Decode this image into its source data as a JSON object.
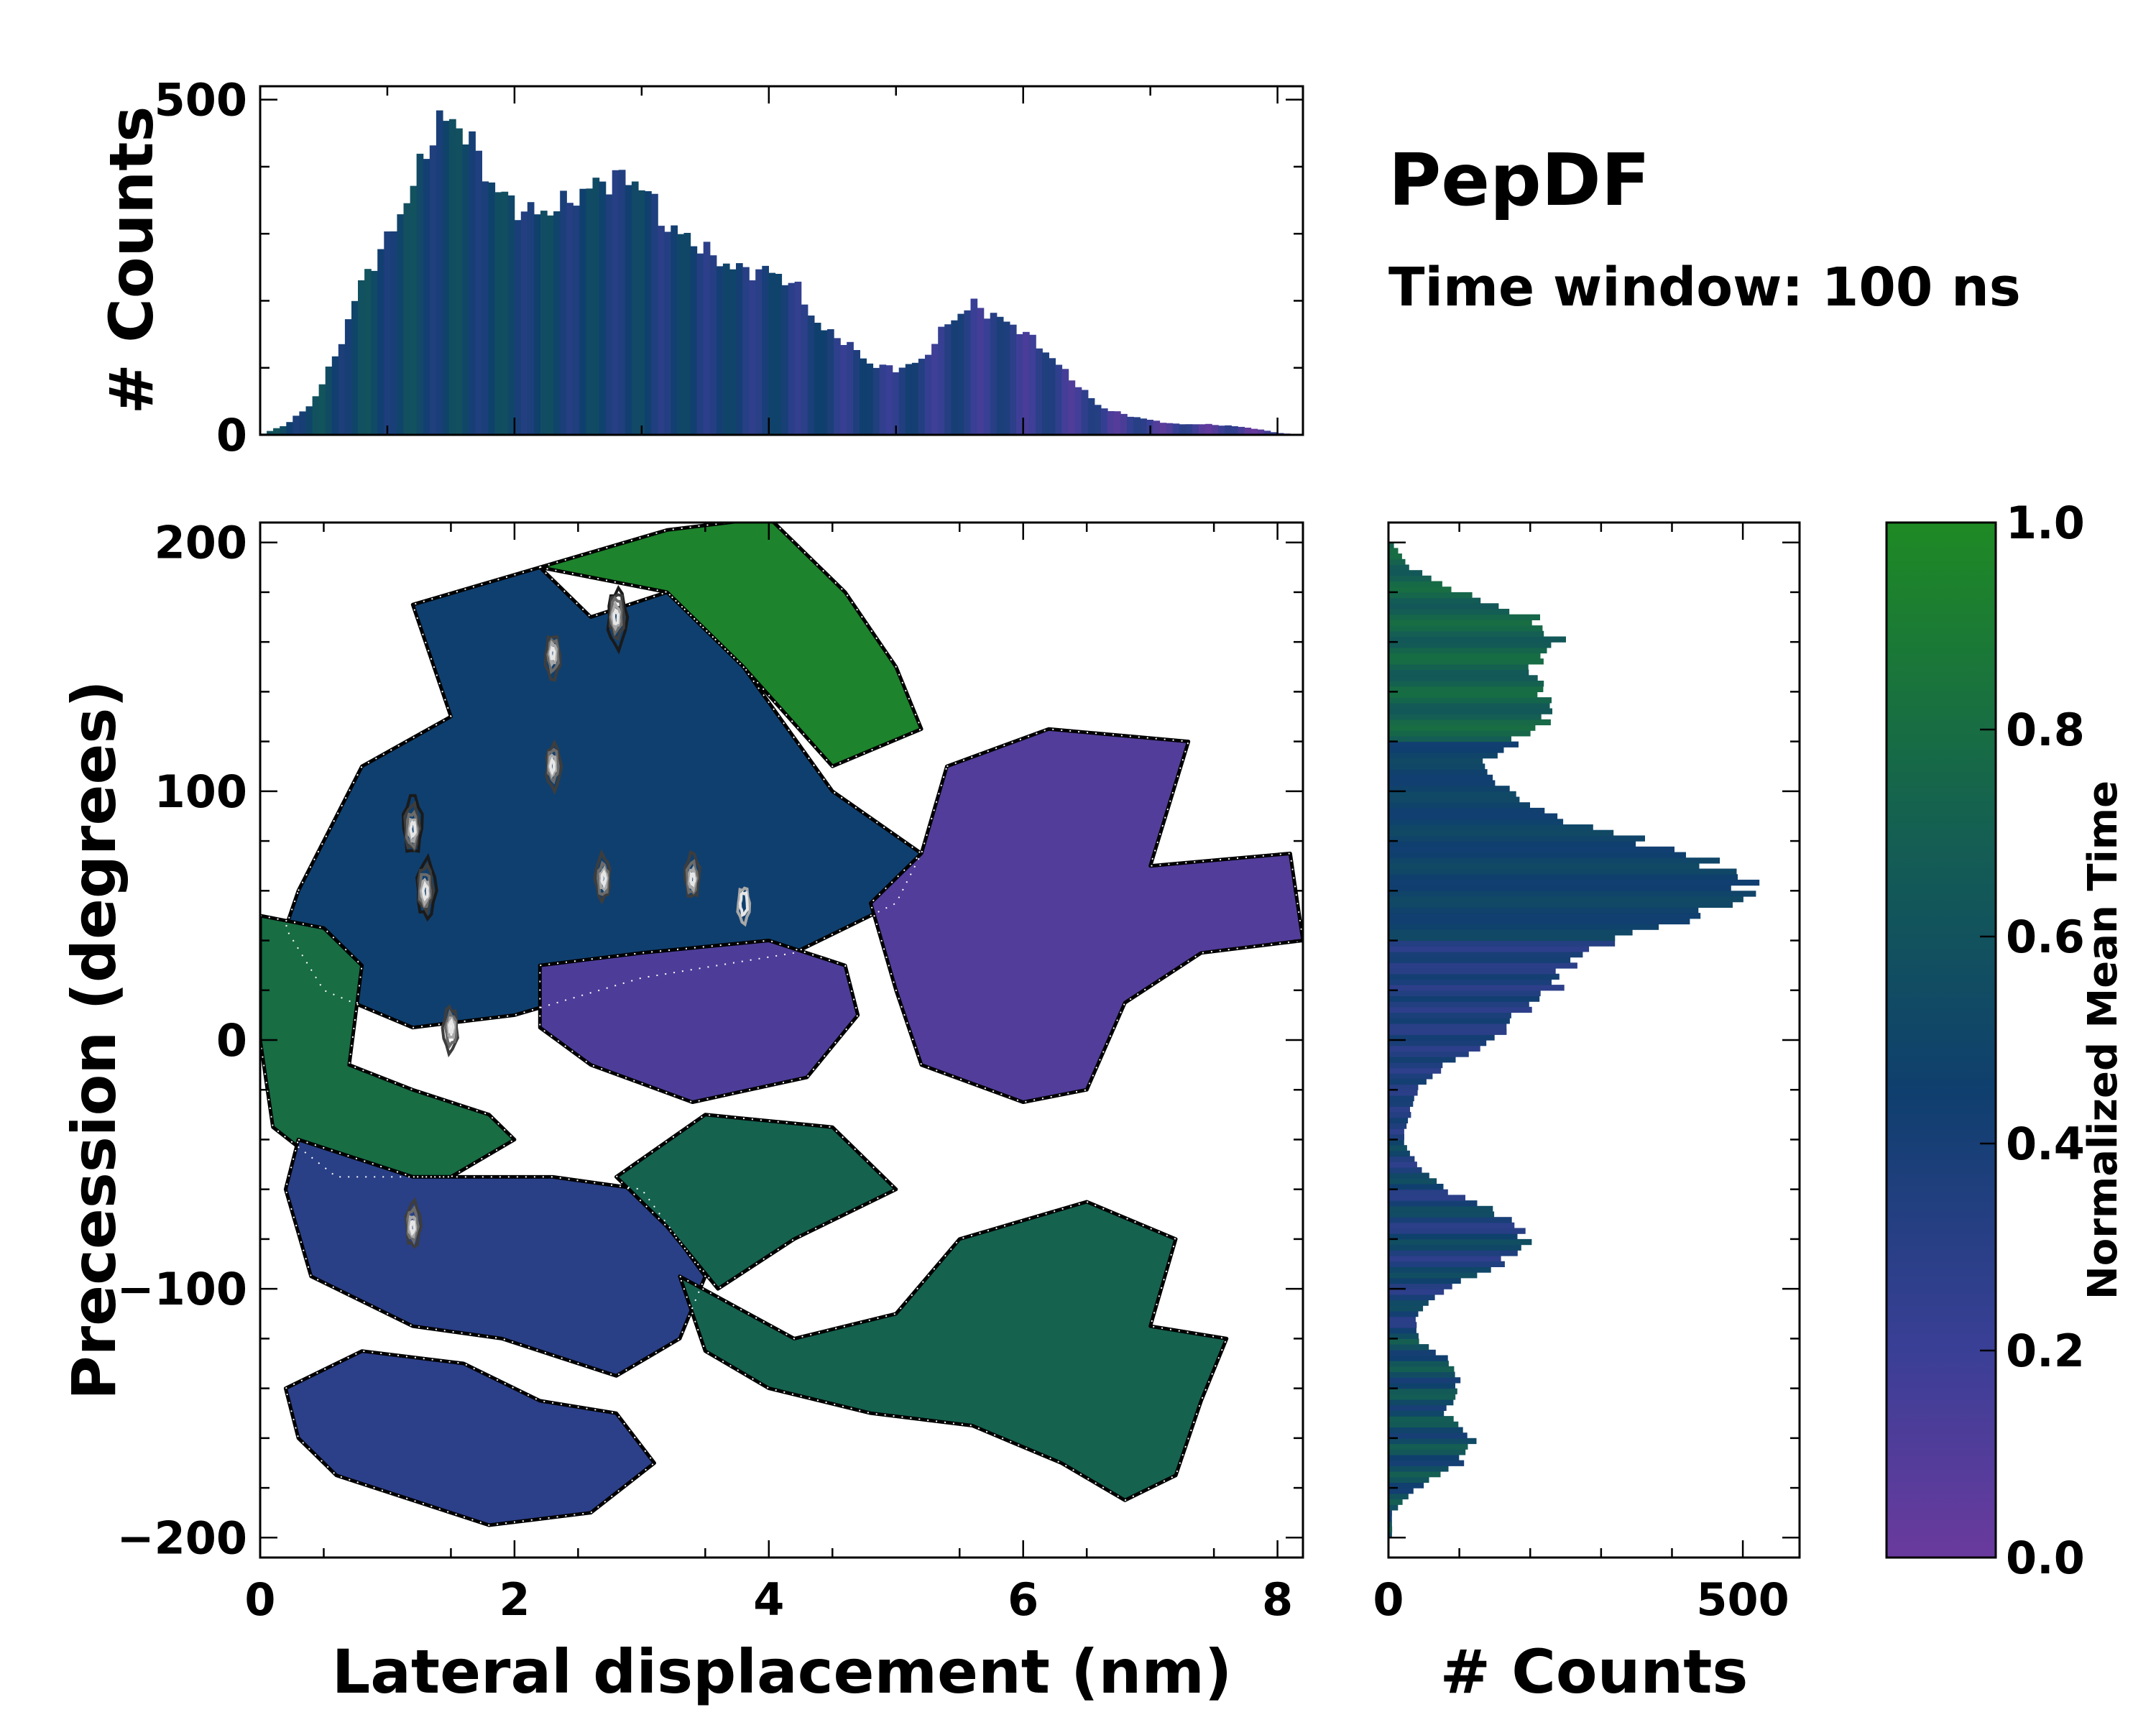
{
  "chart_data": [
    {
      "id": "main",
      "type": "heatmap",
      "title": "PepDF",
      "subtitle": "Time window: 100 ns",
      "xlabel": "Lateral displacement (nm)",
      "ylabel": "Precession (degrees)",
      "xlim": [
        0,
        8.2
      ],
      "ylim": [
        -208,
        208
      ],
      "xticks": [
        0,
        2,
        4,
        6,
        8
      ],
      "xtick_labels": [
        "0",
        "2",
        "4",
        "6",
        "8"
      ],
      "yticks": [
        -200,
        -100,
        0,
        100,
        200
      ],
      "ytick_labels": [
        "−200",
        "−100",
        "0",
        "100",
        "200"
      ],
      "regions": [
        {
          "name": "upper-blue",
          "color_value": 0.45,
          "polygon": [
            [
              0.3,
              60
            ],
            [
              0.8,
              110
            ],
            [
              1.5,
              130
            ],
            [
              1.2,
              175
            ],
            [
              2.2,
              190
            ],
            [
              2.6,
              170
            ],
            [
              3.2,
              180
            ],
            [
              3.8,
              150
            ],
            [
              4.5,
              100
            ],
            [
              5.2,
              75
            ],
            [
              5.0,
              55
            ],
            [
              4.2,
              35
            ],
            [
              3.0,
              25
            ],
            [
              2.0,
              10
            ],
            [
              1.2,
              5
            ],
            [
              0.5,
              20
            ],
            [
              0.2,
              45
            ]
          ]
        },
        {
          "name": "upper-green",
          "color_value": 0.95,
          "polygon": [
            [
              2.2,
              190
            ],
            [
              3.2,
              205
            ],
            [
              4.0,
              210
            ],
            [
              4.6,
              180
            ],
            [
              5.0,
              150
            ],
            [
              5.2,
              125
            ],
            [
              4.5,
              110
            ],
            [
              3.8,
              150
            ],
            [
              3.2,
              180
            ]
          ]
        },
        {
          "name": "upper-right-purple",
          "color_value": 0.1,
          "polygon": [
            [
              5.4,
              110
            ],
            [
              6.2,
              125
            ],
            [
              7.3,
              120
            ],
            [
              7.0,
              70
            ],
            [
              8.1,
              75
            ],
            [
              8.2,
              40
            ],
            [
              7.4,
              35
            ],
            [
              6.8,
              15
            ],
            [
              6.5,
              -20
            ],
            [
              6.0,
              -25
            ],
            [
              5.2,
              -10
            ],
            [
              5.0,
              20
            ],
            [
              4.8,
              55
            ],
            [
              5.2,
              75
            ]
          ]
        },
        {
          "name": "middle-purple",
          "color_value": 0.12,
          "polygon": [
            [
              2.2,
              30
            ],
            [
              3.0,
              35
            ],
            [
              4.0,
              40
            ],
            [
              4.6,
              30
            ],
            [
              4.7,
              10
            ],
            [
              4.3,
              -15
            ],
            [
              3.4,
              -25
            ],
            [
              2.6,
              -10
            ],
            [
              2.2,
              5
            ]
          ]
        },
        {
          "name": "left-green",
          "color_value": 0.8,
          "polygon": [
            [
              0.0,
              50
            ],
            [
              0.5,
              45
            ],
            [
              0.8,
              30
            ],
            [
              0.7,
              -10
            ],
            [
              1.2,
              -20
            ],
            [
              1.8,
              -30
            ],
            [
              2.0,
              -40
            ],
            [
              1.5,
              -55
            ],
            [
              0.6,
              -55
            ],
            [
              0.1,
              -35
            ],
            [
              0.0,
              0
            ]
          ]
        },
        {
          "name": "lower-left-blue",
          "color_value": 0.3,
          "polygon": [
            [
              0.3,
              -40
            ],
            [
              1.2,
              -55
            ],
            [
              2.3,
              -55
            ],
            [
              3.0,
              -60
            ],
            [
              3.5,
              -95
            ],
            [
              3.3,
              -120
            ],
            [
              2.8,
              -135
            ],
            [
              1.9,
              -120
            ],
            [
              1.2,
              -115
            ],
            [
              0.4,
              -95
            ],
            [
              0.2,
              -60
            ]
          ]
        },
        {
          "name": "lower-middle-green",
          "color_value": 0.72,
          "polygon": [
            [
              2.8,
              -55
            ],
            [
              3.5,
              -30
            ],
            [
              4.5,
              -35
            ],
            [
              5.0,
              -60
            ],
            [
              4.2,
              -80
            ],
            [
              3.6,
              -100
            ],
            [
              3.2,
              -75
            ]
          ]
        },
        {
          "name": "lower-right-green",
          "color_value": 0.72,
          "polygon": [
            [
              3.3,
              -95
            ],
            [
              4.2,
              -120
            ],
            [
              5.0,
              -110
            ],
            [
              5.5,
              -80
            ],
            [
              6.5,
              -65
            ],
            [
              7.2,
              -80
            ],
            [
              7.0,
              -115
            ],
            [
              7.6,
              -120
            ],
            [
              7.4,
              -145
            ],
            [
              7.2,
              -175
            ],
            [
              6.8,
              -185
            ],
            [
              6.3,
              -170
            ],
            [
              5.6,
              -155
            ],
            [
              4.8,
              -150
            ],
            [
              4.0,
              -140
            ],
            [
              3.5,
              -125
            ]
          ]
        },
        {
          "name": "bottom-left-blue",
          "color_value": 0.28,
          "polygon": [
            [
              0.2,
              -140
            ],
            [
              0.8,
              -125
            ],
            [
              1.6,
              -130
            ],
            [
              2.2,
              -145
            ],
            [
              2.8,
              -150
            ],
            [
              3.1,
              -170
            ],
            [
              2.6,
              -190
            ],
            [
              1.8,
              -195
            ],
            [
              1.2,
              -185
            ],
            [
              0.6,
              -175
            ],
            [
              0.3,
              -160
            ]
          ]
        }
      ],
      "density_peaks": [
        {
          "x": 1.2,
          "y": 85,
          "level": "high"
        },
        {
          "x": 1.3,
          "y": 60,
          "level": "high"
        },
        {
          "x": 2.8,
          "y": 170,
          "level": "high"
        },
        {
          "x": 2.3,
          "y": 155,
          "level": "medium"
        },
        {
          "x": 1.5,
          "y": 5,
          "level": "medium"
        },
        {
          "x": 2.7,
          "y": 65,
          "level": "medium"
        },
        {
          "x": 3.4,
          "y": 65,
          "level": "medium"
        },
        {
          "x": 1.2,
          "y": -75,
          "level": "medium"
        },
        {
          "x": 2.3,
          "y": 110,
          "level": "medium"
        },
        {
          "x": 3.8,
          "y": 55,
          "level": "low"
        }
      ]
    },
    {
      "id": "top-marginal",
      "type": "bar",
      "ylabel": "# Counts",
      "ylim": [
        0,
        520
      ],
      "yticks": [
        0,
        500
      ],
      "ytick_labels": [
        "0",
        "500"
      ],
      "bin_color_range": [
        0.5,
        0.1
      ],
      "x": [
        0.0,
        0.2,
        0.4,
        0.6,
        0.8,
        1.0,
        1.2,
        1.4,
        1.6,
        1.8,
        2.0,
        2.2,
        2.4,
        2.6,
        2.8,
        3.0,
        3.2,
        3.4,
        3.6,
        3.8,
        4.0,
        4.2,
        4.4,
        4.6,
        4.8,
        5.0,
        5.2,
        5.4,
        5.6,
        5.8,
        6.0,
        6.2,
        6.4,
        6.6,
        6.8,
        7.0,
        7.2,
        7.4,
        7.6,
        7.8,
        8.0,
        8.2
      ],
      "values": [
        0,
        15,
        45,
        120,
        230,
        290,
        370,
        470,
        460,
        380,
        340,
        330,
        345,
        370,
        385,
        375,
        310,
        290,
        260,
        245,
        245,
        225,
        160,
        140,
        105,
        98,
        110,
        165,
        195,
        175,
        155,
        120,
        80,
        42,
        30,
        22,
        16,
        16,
        14,
        10,
        3,
        0
      ]
    },
    {
      "id": "right-marginal",
      "type": "bar",
      "xlabel": "# Counts",
      "xlim": [
        0,
        580
      ],
      "xticks": [
        0,
        500
      ],
      "xtick_labels": [
        "0",
        "500"
      ],
      "y": [
        -190,
        -180,
        -170,
        -160,
        -150,
        -140,
        -130,
        -120,
        -110,
        -100,
        -90,
        -80,
        -70,
        -60,
        -50,
        -40,
        -30,
        -20,
        -10,
        0,
        10,
        20,
        30,
        40,
        50,
        60,
        70,
        80,
        90,
        100,
        110,
        120,
        130,
        140,
        150,
        160,
        170,
        180,
        190,
        200
      ],
      "values": [
        5,
        40,
        100,
        120,
        80,
        100,
        90,
        40,
        40,
        80,
        160,
        200,
        160,
        80,
        40,
        20,
        30,
        40,
        80,
        150,
        180,
        230,
        250,
        310,
        440,
        520,
        470,
        360,
        230,
        170,
        130,
        180,
        230,
        220,
        200,
        240,
        200,
        100,
        30,
        5
      ]
    },
    {
      "id": "colorbar",
      "type": "colorbar",
      "label": "Normalized Mean Time",
      "range": [
        0.0,
        1.0
      ],
      "ticks": [
        0.0,
        0.2,
        0.4,
        0.6,
        0.8,
        1.0
      ],
      "tick_labels": [
        "0.0",
        "0.2",
        "0.4",
        "0.6",
        "0.8",
        "1.0"
      ],
      "colormap_stops": [
        {
          "value": 0.0,
          "color": "#6a3a9e"
        },
        {
          "value": 0.2,
          "color": "#3a3f96"
        },
        {
          "value": 0.45,
          "color": "#0f3f6e"
        },
        {
          "value": 0.7,
          "color": "#145f52"
        },
        {
          "value": 1.0,
          "color": "#1f8a24"
        }
      ]
    }
  ]
}
